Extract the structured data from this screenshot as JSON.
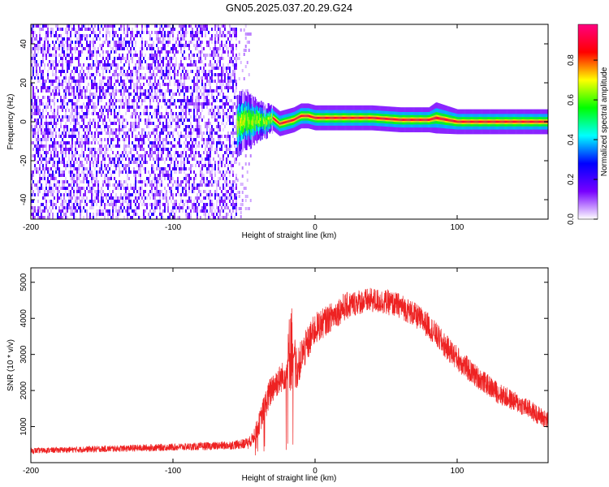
{
  "figure_title": "GN05.2025.037.20.29.G24",
  "chart_data": [
    {
      "type": "heatmap",
      "title": "",
      "xlabel": "Height of straight line (km)",
      "ylabel": "Frequency (Hz)",
      "xlim": [
        -200,
        164
      ],
      "ylim": [
        -50,
        50
      ],
      "xticks": [
        -200,
        -100,
        0,
        100
      ],
      "yticks": [
        -40,
        -20,
        0,
        20,
        40
      ],
      "colorbar": {
        "label": "Normalized spectral amplitude",
        "range": [
          0.0,
          0.98
        ],
        "ticks": [
          0.0,
          0.2,
          0.4,
          0.6,
          0.8
        ],
        "colormap": [
          "#ffffff",
          "#7700ff",
          "#0000ff",
          "#00ffff",
          "#00ff00",
          "#ffff00",
          "#ff0000",
          "#ff0080"
        ]
      },
      "noise_region": {
        "x": [
          -200,
          -55
        ],
        "y": [
          -50,
          50
        ],
        "amplitude": [
          0.0,
          0.25
        ]
      },
      "ridge": {
        "x": [
          -55,
          -50,
          -45,
          -40,
          -35,
          -30,
          -25,
          -20,
          -15,
          -10,
          -5,
          0,
          20,
          40,
          60,
          80,
          85,
          100,
          120,
          140,
          164
        ],
        "freq": [
          -2,
          1,
          0,
          1,
          0,
          2,
          -1,
          0,
          1,
          3,
          3,
          2,
          2,
          2,
          1,
          1,
          2,
          0,
          0,
          0,
          0
        ],
        "width": [
          10,
          9,
          8,
          6,
          5,
          4,
          4,
          4,
          4,
          4,
          4,
          4,
          4,
          4,
          4,
          4,
          5,
          4,
          4,
          4,
          4
        ]
      }
    },
    {
      "type": "line",
      "title": "",
      "xlabel": "Height of straight line (km)",
      "ylabel": "SNR (10 * v/v)",
      "xlim": [
        -200,
        164
      ],
      "ylim": [
        0,
        5400
      ],
      "xticks": [
        -200,
        -100,
        0,
        100
      ],
      "yticks": [
        1000,
        2000,
        3000,
        4000,
        5000
      ],
      "color": "#ee2222",
      "series": [
        {
          "x": [
            -200,
            -180,
            -160,
            -140,
            -120,
            -100,
            -80,
            -60,
            -50,
            -45,
            -40,
            -35,
            -30,
            -25,
            -20,
            -17,
            -15,
            -13,
            -10,
            -5,
            0,
            10,
            20,
            30,
            40,
            50,
            60,
            70,
            80,
            90,
            100,
            110,
            120,
            130,
            140,
            150,
            160,
            164
          ],
          "y": [
            330,
            350,
            370,
            390,
            410,
            430,
            450,
            480,
            520,
            600,
            1000,
            1600,
            2100,
            2300,
            2500,
            3400,
            2700,
            2500,
            2900,
            3300,
            3700,
            4000,
            4300,
            4450,
            4500,
            4450,
            4350,
            4100,
            3800,
            3300,
            2900,
            2500,
            2200,
            1900,
            1700,
            1500,
            1250,
            1150
          ],
          "noise": [
            80,
            80,
            90,
            90,
            100,
            100,
            110,
            120,
            140,
            160,
            300,
            400,
            450,
            400,
            450,
            1500,
            600,
            500,
            500,
            500,
            450,
            400,
            400,
            350,
            350,
            350,
            350,
            350,
            350,
            350,
            350,
            330,
            300,
            300,
            280,
            270,
            260,
            260
          ]
        }
      ]
    }
  ]
}
